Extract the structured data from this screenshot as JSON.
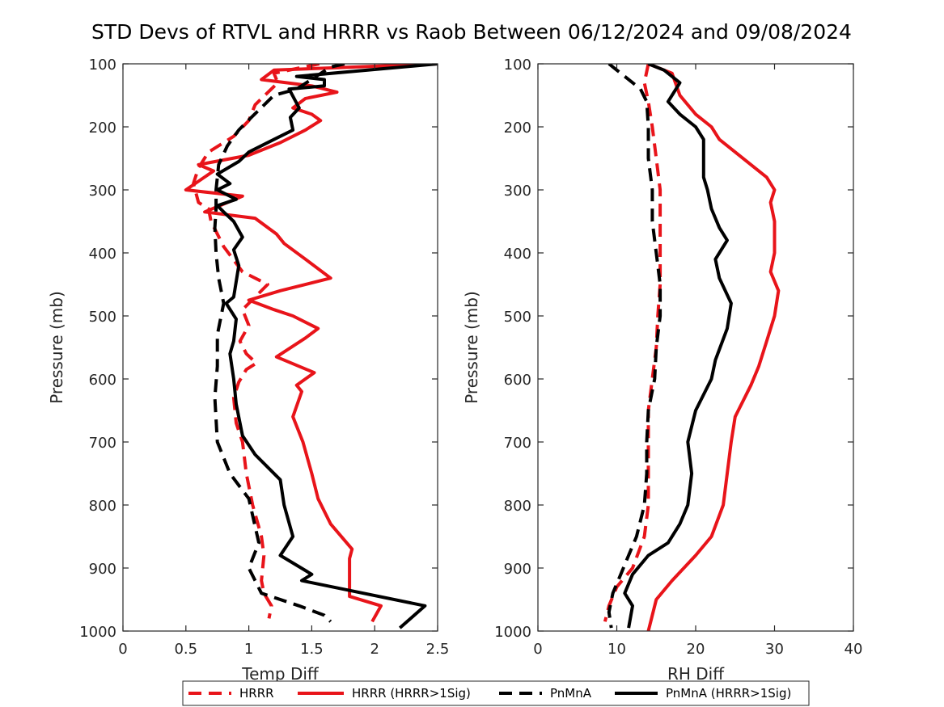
{
  "title": "STD Devs of RTVL and HRRR vs Raob Between 06/12/2024 and 09/08/2024",
  "colors": {
    "red": "#e8141a",
    "black": "#000000"
  },
  "legend": {
    "placement": "bottom",
    "entries": [
      {
        "label": "HRRR",
        "color": "#e8141a",
        "style": "dashed"
      },
      {
        "label": "HRRR (HRRR>1Sig)",
        "color": "#e8141a",
        "style": "solid"
      },
      {
        "label": "PnMnA",
        "color": "#000000",
        "style": "dashed"
      },
      {
        "label": "PnMnA (HRRR>1Sig)",
        "color": "#000000",
        "style": "solid"
      }
    ]
  },
  "chart_data": [
    {
      "type": "line",
      "xlabel": "Temp Diff",
      "ylabel": "Pressure (mb)",
      "xlim": [
        0,
        2.5
      ],
      "ylim": [
        100,
        1000
      ],
      "y_reversed": true,
      "xticks": [
        "0",
        "0.5",
        "1",
        "1.5",
        "2",
        "2.5"
      ],
      "yticks": [
        "100",
        "200",
        "300",
        "400",
        "500",
        "600",
        "700",
        "800",
        "900",
        "1000"
      ],
      "series": [
        {
          "name": "HRRR",
          "style": "dashed",
          "color": "#e8141a",
          "points": [
            [
              1.56,
              100
            ],
            [
              1.2,
              115
            ],
            [
              1.23,
              130
            ],
            [
              1.05,
              165
            ],
            [
              1.0,
              190
            ],
            [
              0.88,
              215
            ],
            [
              0.68,
              240
            ],
            [
              0.6,
              265
            ],
            [
              0.56,
              290
            ],
            [
              0.6,
              320
            ],
            [
              0.68,
              330
            ],
            [
              0.7,
              350
            ],
            [
              0.8,
              390
            ],
            [
              0.95,
              430
            ],
            [
              1.15,
              450
            ],
            [
              1.05,
              470
            ],
            [
              0.95,
              490
            ],
            [
              1.0,
              515
            ],
            [
              0.93,
              540
            ],
            [
              0.98,
              560
            ],
            [
              1.06,
              575
            ],
            [
              0.98,
              585
            ],
            [
              0.92,
              605
            ],
            [
              0.88,
              630
            ],
            [
              0.9,
              670
            ],
            [
              0.95,
              700
            ],
            [
              0.98,
              750
            ],
            [
              1.03,
              800
            ],
            [
              1.1,
              850
            ],
            [
              1.12,
              880
            ],
            [
              1.1,
              920
            ],
            [
              1.12,
              940
            ],
            [
              1.18,
              960
            ],
            [
              1.16,
              980
            ]
          ]
        },
        {
          "name": "HRRR (HRRR>1Sig)",
          "style": "solid",
          "color": "#e8141a",
          "points": [
            [
              2.5,
              100
            ],
            [
              1.2,
              110
            ],
            [
              1.1,
              125
            ],
            [
              1.5,
              135
            ],
            [
              1.7,
              145
            ],
            [
              1.45,
              155
            ],
            [
              1.35,
              170
            ],
            [
              1.5,
              180
            ],
            [
              1.57,
              190
            ],
            [
              1.45,
              205
            ],
            [
              1.25,
              225
            ],
            [
              1.0,
              245
            ],
            [
              0.6,
              260
            ],
            [
              0.72,
              270
            ],
            [
              0.5,
              300
            ],
            [
              0.95,
              310
            ],
            [
              0.65,
              335
            ],
            [
              1.05,
              345
            ],
            [
              1.22,
              370
            ],
            [
              1.28,
              385
            ],
            [
              1.45,
              410
            ],
            [
              1.65,
              440
            ],
            [
              1.25,
              460
            ],
            [
              1.0,
              475
            ],
            [
              1.2,
              490
            ],
            [
              1.35,
              500
            ],
            [
              1.55,
              520
            ],
            [
              1.45,
              535
            ],
            [
              1.22,
              565
            ],
            [
              1.52,
              590
            ],
            [
              1.38,
              610
            ],
            [
              1.42,
              620
            ],
            [
              1.35,
              660
            ],
            [
              1.43,
              700
            ],
            [
              1.5,
              750
            ],
            [
              1.55,
              790
            ],
            [
              1.65,
              830
            ],
            [
              1.82,
              870
            ],
            [
              1.8,
              885
            ],
            [
              1.8,
              945
            ],
            [
              2.05,
              960
            ],
            [
              1.98,
              985
            ]
          ]
        },
        {
          "name": "PnMnA",
          "style": "dashed",
          "color": "#000000",
          "points": [
            [
              1.76,
              100
            ],
            [
              1.65,
              105
            ],
            [
              1.38,
              140
            ],
            [
              1.2,
              150
            ],
            [
              1.02,
              185
            ],
            [
              0.92,
              205
            ],
            [
              0.83,
              230
            ],
            [
              0.76,
              260
            ],
            [
              0.74,
              300
            ],
            [
              0.74,
              330
            ],
            [
              0.73,
              360
            ],
            [
              0.74,
              400
            ],
            [
              0.76,
              440
            ],
            [
              0.8,
              480
            ],
            [
              0.75,
              530
            ],
            [
              0.75,
              580
            ],
            [
              0.73,
              630
            ],
            [
              0.75,
              700
            ],
            [
              0.85,
              750
            ],
            [
              1.0,
              790
            ],
            [
              1.08,
              860
            ],
            [
              1.0,
              900
            ],
            [
              1.1,
              940
            ],
            [
              1.4,
              960
            ],
            [
              1.6,
              975
            ],
            [
              1.65,
              985
            ]
          ]
        },
        {
          "name": "PnMnA (HRRR>1Sig)",
          "style": "solid",
          "color": "#000000",
          "points": [
            [
              2.5,
              100
            ],
            [
              1.38,
              120
            ],
            [
              1.6,
              125
            ],
            [
              1.6,
              135
            ],
            [
              1.32,
              140
            ],
            [
              1.4,
              170
            ],
            [
              1.33,
              185
            ],
            [
              1.35,
              205
            ],
            [
              1.2,
              220
            ],
            [
              1.0,
              240
            ],
            [
              0.92,
              255
            ],
            [
              0.75,
              275
            ],
            [
              0.85,
              290
            ],
            [
              0.75,
              300
            ],
            [
              0.9,
              315
            ],
            [
              0.75,
              325
            ],
            [
              0.8,
              335
            ],
            [
              0.88,
              350
            ],
            [
              0.95,
              375
            ],
            [
              0.88,
              395
            ],
            [
              0.92,
              420
            ],
            [
              0.88,
              470
            ],
            [
              0.82,
              480
            ],
            [
              0.9,
              505
            ],
            [
              0.88,
              540
            ],
            [
              0.85,
              560
            ],
            [
              0.88,
              600
            ],
            [
              0.9,
              640
            ],
            [
              0.95,
              690
            ],
            [
              1.05,
              720
            ],
            [
              1.25,
              760
            ],
            [
              1.28,
              800
            ],
            [
              1.35,
              850
            ],
            [
              1.25,
              880
            ],
            [
              1.5,
              910
            ],
            [
              1.42,
              920
            ],
            [
              2.4,
              960
            ],
            [
              2.2,
              995
            ]
          ]
        }
      ]
    },
    {
      "type": "line",
      "xlabel": "RH Diff",
      "ylabel": "Pressure (mb)",
      "xlim": [
        0,
        40
      ],
      "ylim": [
        100,
        1000
      ],
      "y_reversed": true,
      "xticks": [
        "0",
        "10",
        "20",
        "30",
        "40"
      ],
      "yticks": [
        "100",
        "200",
        "300",
        "400",
        "500",
        "600",
        "700",
        "800",
        "900",
        "1000"
      ],
      "series": [
        {
          "name": "HRRR",
          "style": "dashed",
          "color": "#e8141a",
          "points": [
            [
              14,
              100
            ],
            [
              13.5,
              130
            ],
            [
              14,
              160
            ],
            [
              14.5,
              200
            ],
            [
              15,
              250
            ],
            [
              15.5,
              300
            ],
            [
              15.5,
              350
            ],
            [
              15.5,
              400
            ],
            [
              15.5,
              450
            ],
            [
              15.2,
              500
            ],
            [
              15,
              550
            ],
            [
              14.5,
              600
            ],
            [
              14,
              650
            ],
            [
              14,
              700
            ],
            [
              14,
              750
            ],
            [
              14,
              800
            ],
            [
              13.5,
              850
            ],
            [
              12,
              900
            ],
            [
              10,
              930
            ],
            [
              9,
              960
            ],
            [
              8.5,
              985
            ]
          ]
        },
        {
          "name": "HRRR (HRRR>1Sig)",
          "style": "solid",
          "color": "#e8141a",
          "points": [
            [
              14,
              100
            ],
            [
              17,
              115
            ],
            [
              18,
              150
            ],
            [
              20,
              180
            ],
            [
              22,
              200
            ],
            [
              23,
              220
            ],
            [
              25,
              240
            ],
            [
              27,
              260
            ],
            [
              29,
              280
            ],
            [
              30,
              300
            ],
            [
              29.5,
              320
            ],
            [
              30,
              350
            ],
            [
              30,
              400
            ],
            [
              29.5,
              430
            ],
            [
              30.5,
              460
            ],
            [
              30,
              500
            ],
            [
              29,
              540
            ],
            [
              28,
              580
            ],
            [
              27,
              610
            ],
            [
              25,
              660
            ],
            [
              24.5,
              700
            ],
            [
              24,
              750
            ],
            [
              23.5,
              800
            ],
            [
              22,
              850
            ],
            [
              20,
              880
            ],
            [
              17,
              920
            ],
            [
              15,
              950
            ],
            [
              14,
              1000
            ]
          ]
        },
        {
          "name": "PnMnA",
          "style": "dashed",
          "color": "#000000",
          "points": [
            [
              9,
              100
            ],
            [
              11,
              120
            ],
            [
              13,
              140
            ],
            [
              13.8,
              160
            ],
            [
              14,
              200
            ],
            [
              14,
              250
            ],
            [
              14.5,
              300
            ],
            [
              14.5,
              350
            ],
            [
              15,
              400
            ],
            [
              15.5,
              450
            ],
            [
              15.5,
              500
            ],
            [
              15,
              550
            ],
            [
              14.8,
              600
            ],
            [
              14,
              650
            ],
            [
              13.8,
              700
            ],
            [
              13.8,
              750
            ],
            [
              13.5,
              800
            ],
            [
              12.5,
              850
            ],
            [
              11.5,
              880
            ],
            [
              10.5,
              910
            ],
            [
              9.5,
              940
            ],
            [
              9,
              970
            ],
            [
              9.3,
              995
            ]
          ]
        },
        {
          "name": "PnMnA (HRRR>1Sig)",
          "style": "solid",
          "color": "#000000",
          "points": [
            [
              14,
              100
            ],
            [
              16,
              110
            ],
            [
              18,
              130
            ],
            [
              16.5,
              160
            ],
            [
              18,
              180
            ],
            [
              20,
              200
            ],
            [
              21,
              220
            ],
            [
              21,
              280
            ],
            [
              21.5,
              300
            ],
            [
              22,
              330
            ],
            [
              23,
              360
            ],
            [
              24,
              380
            ],
            [
              22.5,
              410
            ],
            [
              23,
              440
            ],
            [
              24.5,
              480
            ],
            [
              24,
              520
            ],
            [
              22.5,
              570
            ],
            [
              22,
              600
            ],
            [
              20,
              650
            ],
            [
              19,
              700
            ],
            [
              19.5,
              750
            ],
            [
              19,
              800
            ],
            [
              18,
              830
            ],
            [
              16.5,
              860
            ],
            [
              14,
              880
            ],
            [
              12,
              910
            ],
            [
              11,
              940
            ],
            [
              12,
              960
            ],
            [
              11.5,
              995
            ]
          ]
        }
      ]
    }
  ]
}
